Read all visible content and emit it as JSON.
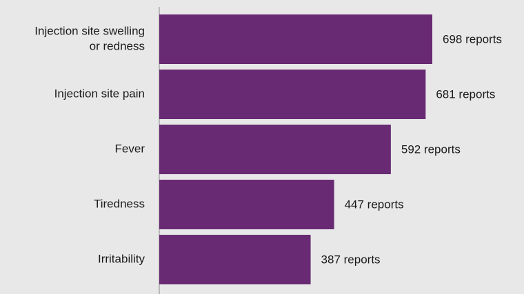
{
  "chart_data": {
    "type": "bar",
    "orientation": "horizontal",
    "categories": [
      [
        "Injection site swelling",
        "or redness"
      ],
      [
        "Injection site pain"
      ],
      [
        "Fever"
      ],
      [
        "Tiredness"
      ],
      [
        "Irritability"
      ]
    ],
    "values": [
      698,
      681,
      592,
      447,
      387
    ],
    "value_labels": [
      "698 reports",
      "681 reports",
      "592 reports",
      "447 reports",
      "387 reports"
    ],
    "title": "",
    "xlabel": "",
    "ylabel": "",
    "xlim": [
      0,
      698
    ],
    "grid": false,
    "legend": "none",
    "bar_color": "#682a73",
    "axis_color": "#8a8a8a",
    "background": "#e8e8e8"
  }
}
